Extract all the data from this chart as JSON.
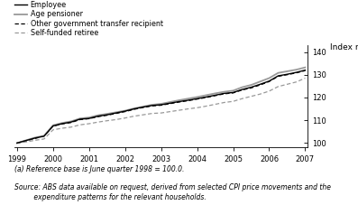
{
  "title": "",
  "ylabel": "Index no.",
  "ylim": [
    98,
    143
  ],
  "yticks": [
    100,
    110,
    120,
    130,
    140
  ],
  "xlabel": "",
  "footnote1": "(a) Reference base is June quarter 1998 = 100.0.",
  "footnote2": "Source: ABS data available on request, derived from selected CPI price movements and the\n         expenditure patterns for the relevant households.",
  "legend_entries": [
    "Employee",
    "Age pensioner",
    "Other government transfer recipient",
    "Self-funded retiree"
  ],
  "background_color": "#ffffff",
  "employee": [
    100.0,
    101.1,
    102.2,
    103.0,
    107.5,
    108.5,
    109.2,
    110.5,
    110.8,
    111.8,
    112.4,
    113.2,
    114.0,
    115.0,
    115.8,
    116.5,
    116.8,
    117.5,
    118.2,
    118.8,
    119.5,
    120.2,
    121.0,
    121.8,
    122.2,
    123.5,
    124.5,
    125.8,
    127.2,
    129.5,
    130.2,
    131.0,
    132.0
  ],
  "age_pensioner": [
    100.0,
    101.2,
    102.4,
    103.2,
    107.8,
    108.8,
    109.5,
    110.8,
    111.2,
    112.2,
    112.8,
    113.5,
    114.2,
    115.2,
    116.0,
    116.8,
    117.2,
    118.0,
    118.8,
    119.5,
    120.2,
    121.0,
    121.8,
    122.5,
    123.0,
    124.5,
    125.5,
    127.0,
    128.5,
    130.8,
    131.5,
    132.2,
    133.2
  ],
  "other_govt": [
    100.0,
    101.0,
    102.0,
    103.1,
    107.4,
    108.4,
    109.0,
    110.3,
    110.7,
    111.6,
    112.2,
    113.0,
    113.8,
    114.8,
    115.6,
    116.3,
    116.6,
    117.3,
    118.0,
    118.6,
    119.3,
    120.0,
    120.8,
    121.6,
    122.0,
    123.3,
    124.2,
    125.5,
    127.0,
    129.3,
    130.0,
    130.8,
    131.8
  ],
  "self_funded": [
    100.0,
    100.5,
    101.2,
    101.8,
    105.8,
    106.5,
    107.0,
    108.0,
    108.5,
    109.2,
    109.8,
    110.3,
    111.0,
    111.8,
    112.4,
    113.0,
    113.2,
    113.8,
    114.4,
    115.0,
    115.5,
    116.2,
    117.0,
    117.8,
    118.3,
    119.5,
    120.5,
    121.5,
    122.8,
    124.8,
    125.8,
    126.8,
    128.5
  ],
  "xtick_positions": [
    0,
    4,
    8,
    12,
    16,
    20,
    24,
    28,
    32
  ],
  "xtick_labels": [
    "1999",
    "2000",
    "2001",
    "2002",
    "2003",
    "2004",
    "2005",
    "2006",
    "2007"
  ]
}
